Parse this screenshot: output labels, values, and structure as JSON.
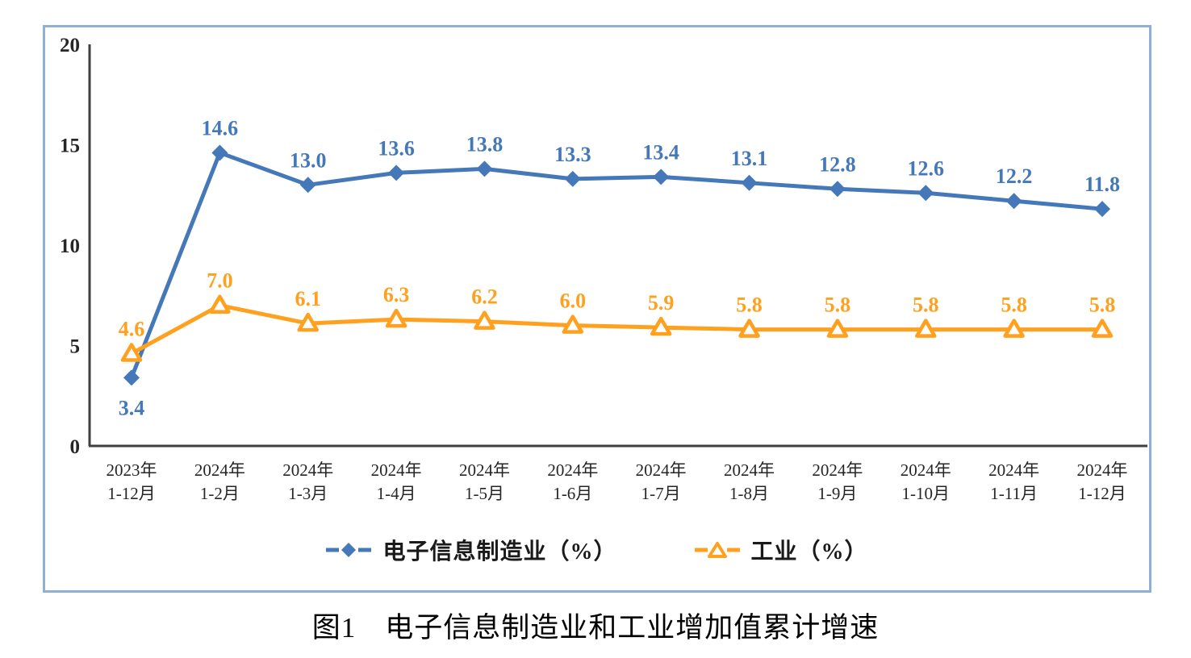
{
  "caption": "图1　电子信息制造业和工业增加值累计增速",
  "colors": {
    "electronics_blue": "#4478b8",
    "industry_orange": "#ffa01e",
    "axis": "#3f3f3f",
    "tick_label": "#262626",
    "panel_border": "#8fafd4",
    "background": "#ffffff"
  },
  "chart_data": {
    "type": "line",
    "title": "",
    "xlabel": "",
    "ylabel": "",
    "ylim": [
      0,
      20
    ],
    "yticks": [
      0,
      5,
      10,
      15,
      20
    ],
    "grid": false,
    "legend_position": "bottom",
    "categories": [
      [
        "2023年",
        "1-12月"
      ],
      [
        "2024年",
        "1-2月"
      ],
      [
        "2024年",
        "1-3月"
      ],
      [
        "2024年",
        "1-4月"
      ],
      [
        "2024年",
        "1-5月"
      ],
      [
        "2024年",
        "1-6月"
      ],
      [
        "2024年",
        "1-7月"
      ],
      [
        "2024年",
        "1-8月"
      ],
      [
        "2024年",
        "1-9月"
      ],
      [
        "2024年",
        "1-10月"
      ],
      [
        "2024年",
        "1-11月"
      ],
      [
        "2024年",
        "1-12月"
      ]
    ],
    "series": [
      {
        "name": "电子信息制造业（%）",
        "color": "#4478b8",
        "marker": "diamond",
        "values": [
          3.4,
          14.6,
          13.0,
          13.6,
          13.8,
          13.3,
          13.4,
          13.1,
          12.8,
          12.6,
          12.2,
          11.8
        ],
        "label_below_indices": [
          0
        ]
      },
      {
        "name": "工业（%）",
        "color": "#ffa01e",
        "marker": "triangle-open",
        "values": [
          4.6,
          7.0,
          6.1,
          6.3,
          6.2,
          6.0,
          5.9,
          5.8,
          5.8,
          5.8,
          5.8,
          5.8
        ],
        "label_below_indices": []
      }
    ]
  }
}
